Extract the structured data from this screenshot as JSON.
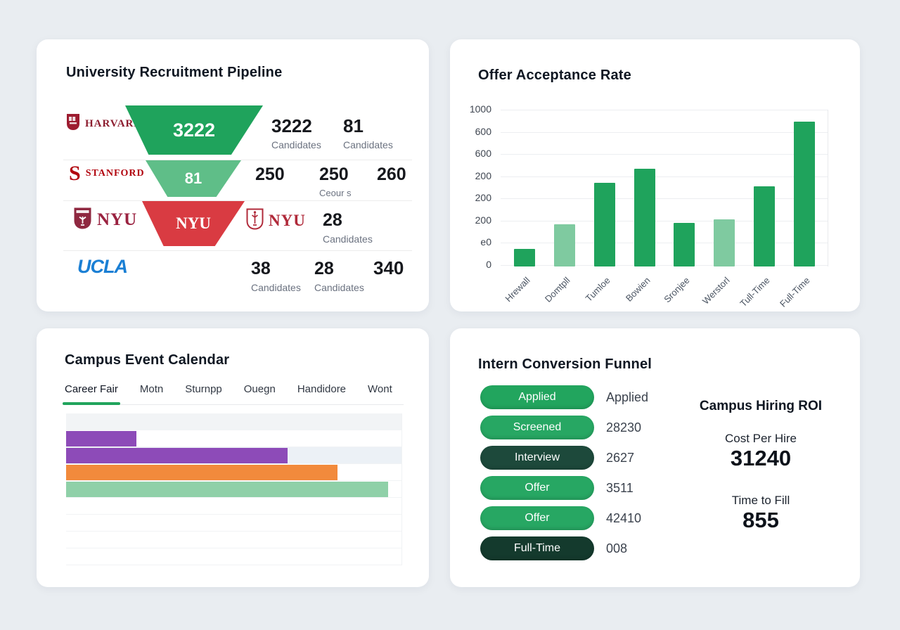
{
  "pipeline": {
    "title": "University Recruitment Pipeline",
    "rows": [
      {
        "school": "HARVARD",
        "funnel": {
          "text": "3222",
          "color": "#1fa35c"
        },
        "stats": [
          {
            "value": "3222",
            "label": "Candidates"
          },
          {
            "value": "81",
            "label": "Candidates"
          }
        ]
      },
      {
        "school": "STANFORD",
        "funnel": {
          "text": "81",
          "color": "#5fbe88"
        },
        "stats": [
          {
            "value": "250",
            "label": ""
          },
          {
            "value": "250",
            "label": "Ceour s"
          },
          {
            "value": "260",
            "label": ""
          }
        ]
      },
      {
        "school": "NYU",
        "funnel": {
          "text": "NYU",
          "color": "#d93b42"
        },
        "secondary_logo": "NYU",
        "stats": [
          {
            "value": "28",
            "label": "Candidates"
          }
        ]
      },
      {
        "school": "UCLA",
        "stats": [
          {
            "value": "38",
            "label": "Candidates"
          },
          {
            "value": "28",
            "label": "Candidates"
          },
          {
            "value": "340",
            "label": ""
          }
        ]
      }
    ]
  },
  "acceptance": {
    "title": "Offer Acceptance Rate"
  },
  "calendar": {
    "title": "Campus Event Calendar",
    "tabs": [
      {
        "label": "Career Fair",
        "active": true
      },
      {
        "label": "Motn",
        "active": false
      },
      {
        "label": "Sturnpp",
        "active": false
      },
      {
        "label": "Ouegn",
        "active": false
      },
      {
        "label": "Handidore",
        "active": false
      },
      {
        "label": "Wont",
        "active": false
      }
    ],
    "accent_color": "#21a45c"
  },
  "funnel": {
    "title": "Intern Conversion Funnel",
    "stages": [
      {
        "label": "Applied",
        "color": "#22a55e",
        "value": "Applied"
      },
      {
        "label": "Screened",
        "color": "#27a763",
        "value": "28230"
      },
      {
        "label": "Interview",
        "color": "#1d493b",
        "value": "2627"
      },
      {
        "label": "Offer",
        "color": "#27a763",
        "value": "3511"
      },
      {
        "label": "Offer",
        "color": "#27a763",
        "value": "42410"
      },
      {
        "label": "Full-Time",
        "color": "#143a2d",
        "value": "008"
      }
    ]
  },
  "roi": {
    "title": "Campus Hiring ROI",
    "metrics": [
      {
        "label": "Cost Per Hire",
        "value": "31240"
      },
      {
        "label": "Time to Fill",
        "value": "855"
      }
    ]
  },
  "chart_data": [
    {
      "id": "offer_acceptance",
      "type": "bar",
      "title": "Offer Acceptance Rate",
      "categories": [
        "Hrewall",
        "Domtpll",
        "Tumloe",
        "Bowien",
        "Sronjee",
        "Werstorl",
        "Tull-Time",
        "Full-Time"
      ],
      "values": [
        115,
        270,
        540,
        630,
        280,
        305,
        515,
        930
      ],
      "bar_colors": [
        "#1fa35c",
        "#7fcaa0",
        "#1fa35c",
        "#1fa35c",
        "#1fa35c",
        "#7fcaa0",
        "#1fa35c",
        "#1fa35c"
      ],
      "ytick_labels": [
        "1000",
        "600",
        "600",
        "200",
        "200",
        "200",
        "e0",
        "0"
      ],
      "ylim": [
        0,
        1000
      ],
      "grid": true,
      "legend": false,
      "xlabel": "",
      "ylabel": ""
    },
    {
      "id": "campus_event_calendar",
      "type": "bar",
      "orientation": "horizontal",
      "title": "Campus Event Calendar",
      "rows": [
        {
          "fill_pct": null,
          "color": null,
          "row_bg": "#f2f4f6"
        },
        {
          "fill_pct": 21,
          "color": "#8d4bb8",
          "row_bg": "#ffffff"
        },
        {
          "fill_pct": 66,
          "color": "#8d4bb8",
          "row_bg": "#ecf1f6"
        },
        {
          "fill_pct": 81,
          "color": "#f28a3c",
          "row_bg": "#ffffff"
        },
        {
          "fill_pct": 96,
          "color": "#8fd0a8",
          "row_bg": "#ffffff"
        },
        {
          "fill_pct": null,
          "color": null,
          "row_bg": "#ffffff"
        },
        {
          "fill_pct": null,
          "color": null,
          "row_bg": "#ffffff"
        },
        {
          "fill_pct": null,
          "color": null,
          "row_bg": "#ffffff"
        },
        {
          "fill_pct": null,
          "color": null,
          "row_bg": "#ffffff"
        }
      ]
    },
    {
      "id": "intern_conversion_funnel",
      "type": "funnel",
      "title": "Intern Conversion Funnel",
      "stages": [
        "Applied",
        "Screened",
        "Interview",
        "Offer",
        "Offer",
        "Full-Time"
      ],
      "values": [
        "Applied",
        "28230",
        "2627",
        "3511",
        "42410",
        "008"
      ]
    }
  ]
}
